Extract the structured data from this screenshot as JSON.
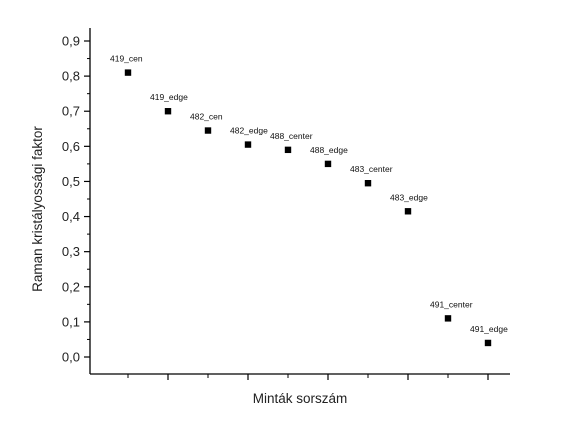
{
  "chart_data": {
    "type": "scatter",
    "xlabel": "Minták sorszám",
    "ylabel": "Raman kristályossági  faktor",
    "ylim": [
      -0.05,
      0.9
    ],
    "yticks": [
      "0,0",
      "0,1",
      "0,2",
      "0,3",
      "0,4",
      "0,5",
      "0,6",
      "0,7",
      "0,8",
      "0,9"
    ],
    "ytick_values": [
      0.0,
      0.1,
      0.2,
      0.3,
      0.4,
      0.5,
      0.6,
      0.7,
      0.8,
      0.9
    ],
    "xlim": [
      0,
      10
    ],
    "grid": false,
    "marker": "square",
    "marker_color": "#000000",
    "points": [
      {
        "label": "419_cen",
        "x": 1,
        "y": 0.81
      },
      {
        "label": "419_edge",
        "x": 2,
        "y": 0.7
      },
      {
        "label": "482_cen",
        "x": 3,
        "y": 0.645
      },
      {
        "label": "482_edge",
        "x": 4,
        "y": 0.605
      },
      {
        "label": "488_center",
        "x": 5,
        "y": 0.59
      },
      {
        "label": "488_edge",
        "x": 6,
        "y": 0.55
      },
      {
        "label": "483_center",
        "x": 7,
        "y": 0.495
      },
      {
        "label": "483_edge",
        "x": 8,
        "y": 0.415
      },
      {
        "label": "491_center",
        "x": 9,
        "y": 0.11
      },
      {
        "label": "491_edge",
        "x": 10,
        "y": 0.04
      }
    ]
  }
}
